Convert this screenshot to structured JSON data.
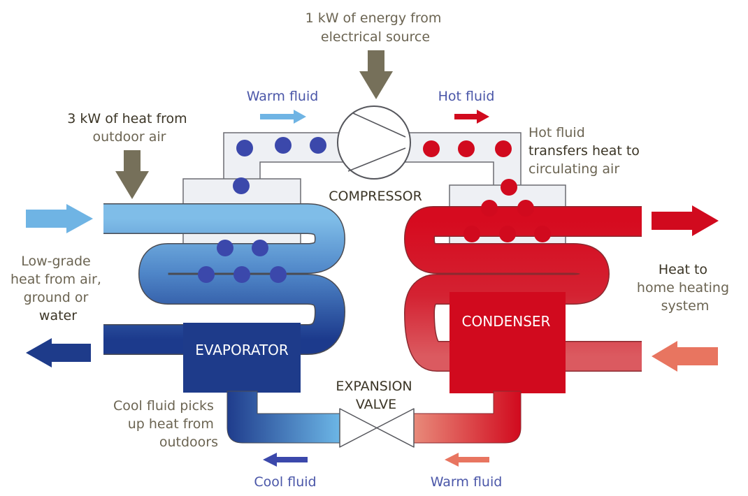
{
  "labels": {
    "energy_source": [
      "1 kW of energy from",
      "electrical source"
    ],
    "warm_fluid_top": "Warm fluid",
    "hot_fluid_top": "Hot fluid",
    "heat_from_air": [
      "3 kW of heat from",
      "outdoor air"
    ],
    "hot_fluid_transfers": [
      "Hot fluid",
      "transfers heat to",
      "circulating air"
    ],
    "compressor": "COMPRESSOR",
    "low_grade": [
      "Low-grade",
      "heat from air,",
      "ground or",
      "water"
    ],
    "heat_to_home": [
      "Heat to",
      "home heating",
      "system"
    ],
    "evaporator": "EVAPORATOR",
    "condenser": "CONDENSER",
    "expansion_valve": [
      "EXPANSION",
      "VALVE"
    ],
    "cool_fluid_picks": [
      "Cool fluid picks",
      "up heat from",
      "outdoors"
    ],
    "cool_fluid_bottom": "Cool fluid",
    "warm_fluid_bottom": "Warm fluid"
  },
  "colors": {
    "text_gray": "#6b6452",
    "text_dark": "#3b3526",
    "text_blue": "#4a56a8",
    "text_red": "#d10a1e",
    "light_blue": "#6fb4e4",
    "dark_blue": "#1e3b8a",
    "red": "#d10a1e",
    "salmon": "#e87560",
    "pipe_fill": "#eef0f4",
    "pipe_stroke": "#6b6c72",
    "arrow_gray": "#76705a",
    "dot_blue": "#3b48ab",
    "dot_red": "#d10a1e"
  }
}
